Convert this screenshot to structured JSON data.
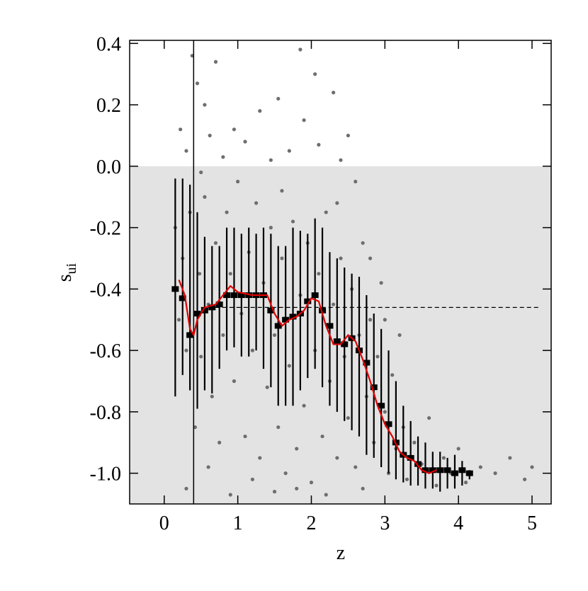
{
  "chart_data": {
    "type": "scatter",
    "xlabel": "z",
    "ylabel": "s",
    "ylabel_sub": "ui",
    "xlim": [
      -0.47,
      5.26
    ],
    "ylim": [
      -1.1,
      0.41
    ],
    "xticks": [
      0,
      1,
      2,
      3,
      4,
      5
    ],
    "yticks": [
      {
        "value": -1.0,
        "label": "-1.0"
      },
      -0.8,
      -0.6,
      -0.4,
      -0.2,
      {
        "value": 0.0,
        "label": "0.0"
      },
      0.2,
      0.4
    ],
    "shade_below": 0,
    "shade_color": "#e3e3e3",
    "vline": {
      "x": 0.4
    },
    "reference_line": {
      "y": -0.46,
      "x": [
        0.5,
        5.1
      ]
    },
    "scatter": {
      "color": "#6e6e6e",
      "x": [
        0.22,
        0.3,
        0.38,
        0.45,
        0.55,
        0.62,
        0.7,
        0.8,
        0.95,
        1.1,
        1.3,
        1.45,
        1.55,
        1.7,
        1.85,
        1.9,
        2.05,
        2.1,
        2.3,
        2.4,
        2.6,
        2.5,
        0.15,
        0.2,
        0.25,
        0.3,
        0.35,
        0.42,
        0.48,
        0.5,
        0.55,
        0.6,
        0.65,
        0.7,
        0.75,
        0.8,
        0.85,
        0.9,
        0.95,
        1.0,
        1.05,
        1.1,
        1.15,
        1.2,
        1.25,
        1.3,
        1.35,
        1.4,
        1.45,
        1.5,
        1.55,
        1.6,
        1.65,
        1.7,
        1.75,
        1.8,
        1.85,
        1.9,
        1.95,
        2.0,
        2.05,
        2.1,
        2.15,
        2.2,
        2.25,
        2.3,
        2.35,
        2.4,
        2.45,
        2.5,
        2.55,
        2.6,
        2.65,
        2.7,
        2.75,
        2.8,
        2.85,
        2.9,
        2.95,
        3.0,
        3.05,
        3.1,
        3.15,
        3.2,
        3.25,
        3.3,
        3.4,
        3.5,
        3.6,
        3.7,
        3.8,
        3.9,
        4.0,
        4.1,
        4.3,
        4.5,
        4.7,
        4.9,
        5.0,
        0.3,
        0.6,
        0.9,
        1.2,
        1.5,
        1.8,
        2.2,
        2.7,
        0.5,
        1.6,
        2.35,
        2.8,
        3.0
      ],
      "y": [
        0.12,
        0.05,
        0.36,
        0.27,
        0.2,
        0.1,
        0.34,
        0.03,
        0.12,
        0.08,
        0.18,
        0.02,
        0.22,
        0.05,
        0.38,
        0.15,
        0.3,
        0.07,
        0.24,
        0.02,
        -0.05,
        0.1,
        -0.2,
        -0.5,
        -0.3,
        -0.6,
        -0.15,
        -0.85,
        -0.35,
        -0.62,
        -0.1,
        -0.45,
        -0.75,
        -0.25,
        -0.9,
        -0.55,
        -0.15,
        -0.35,
        -0.7,
        -0.05,
        -0.48,
        -0.88,
        -0.28,
        -0.6,
        -0.12,
        -0.95,
        -0.38,
        -0.72,
        -0.2,
        -0.55,
        -0.85,
        -0.3,
        -1.0,
        -0.65,
        -0.18,
        -0.92,
        -0.42,
        -0.78,
        -0.25,
        -1.03,
        -0.6,
        -0.35,
        -0.88,
        -0.15,
        -0.7,
        -0.45,
        -0.95,
        -0.3,
        -0.62,
        -0.82,
        -0.4,
        -0.98,
        -0.55,
        -0.25,
        -0.75,
        -0.5,
        -0.9,
        -0.62,
        -0.38,
        -0.8,
        -1.0,
        -0.68,
        -0.92,
        -0.55,
        -0.85,
        -1.02,
        -0.9,
        -0.97,
        -0.82,
        -1.04,
        -0.95,
        -1.0,
        -0.92,
        -1.03,
        -0.98,
        -1.0,
        -0.95,
        -1.02,
        -0.98,
        -1.05,
        -0.98,
        -1.07,
        -1.02,
        -1.06,
        -1.05,
        -1.07,
        -1.05,
        -0.02,
        -0.08,
        -0.12,
        -0.3,
        -0.5
      ]
    },
    "binned": {
      "color": "#000000",
      "x": [
        0.15,
        0.25,
        0.35,
        0.45,
        0.55,
        0.65,
        0.75,
        0.85,
        0.95,
        1.05,
        1.15,
        1.25,
        1.35,
        1.45,
        1.55,
        1.65,
        1.75,
        1.85,
        1.95,
        2.05,
        2.15,
        2.25,
        2.35,
        2.45,
        2.55,
        2.65,
        2.75,
        2.85,
        2.95,
        3.05,
        3.15,
        3.25,
        3.35,
        3.45,
        3.55,
        3.65,
        3.75,
        3.85,
        3.95,
        4.05,
        4.15
      ],
      "median": [
        -0.4,
        -0.43,
        -0.55,
        -0.48,
        -0.47,
        -0.46,
        -0.45,
        -0.42,
        -0.42,
        -0.42,
        -0.42,
        -0.42,
        -0.42,
        -0.47,
        -0.52,
        -0.5,
        -0.49,
        -0.48,
        -0.44,
        -0.42,
        -0.47,
        -0.52,
        -0.57,
        -0.58,
        -0.56,
        -0.6,
        -0.64,
        -0.72,
        -0.78,
        -0.84,
        -0.9,
        -0.94,
        -0.95,
        -0.97,
        -0.99,
        -0.99,
        -0.99,
        -0.99,
        -1.0,
        -0.99,
        -1.0
      ],
      "low": [
        -0.75,
        -0.68,
        -0.73,
        -0.79,
        -0.73,
        -0.74,
        -0.66,
        -0.6,
        -0.59,
        -0.62,
        -0.62,
        -0.6,
        -0.66,
        -0.72,
        -0.78,
        -0.78,
        -0.78,
        -0.73,
        -0.69,
        -0.66,
        -0.72,
        -0.78,
        -0.8,
        -0.83,
        -0.86,
        -0.88,
        -0.94,
        -0.95,
        -0.98,
        -1.0,
        -1.02,
        -1.03,
        -1.04,
        -1.04,
        -1.05,
        -1.05,
        -1.06,
        -1.05,
        -1.05,
        -1.04,
        -1.02
      ],
      "high": [
        -0.04,
        -0.04,
        -0.06,
        -0.15,
        -0.23,
        -0.26,
        -0.26,
        -0.2,
        -0.2,
        -0.22,
        -0.2,
        -0.22,
        -0.2,
        -0.22,
        -0.26,
        -0.26,
        -0.2,
        -0.21,
        -0.22,
        -0.17,
        -0.2,
        -0.28,
        -0.3,
        -0.33,
        -0.35,
        -0.36,
        -0.42,
        -0.48,
        -0.53,
        -0.6,
        -0.7,
        -0.78,
        -0.83,
        -0.88,
        -0.9,
        -0.93,
        -0.93,
        -0.95,
        -0.94,
        -0.96,
        -0.99
      ]
    },
    "smooth": {
      "color": "#e00000",
      "x": [
        0.2,
        0.28,
        0.35,
        0.4,
        0.45,
        0.55,
        0.7,
        0.8,
        0.9,
        1.0,
        1.2,
        1.4,
        1.5,
        1.6,
        1.7,
        1.8,
        1.9,
        2.0,
        2.1,
        2.2,
        2.3,
        2.4,
        2.5,
        2.6,
        2.7,
        2.8,
        2.9,
        3.0,
        3.1,
        3.2,
        3.3,
        3.4,
        3.5,
        3.6,
        3.7
      ],
      "y": [
        -0.37,
        -0.42,
        -0.53,
        -0.55,
        -0.5,
        -0.46,
        -0.45,
        -0.42,
        -0.39,
        -0.41,
        -0.42,
        -0.42,
        -0.48,
        -0.52,
        -0.5,
        -0.49,
        -0.47,
        -0.43,
        -0.44,
        -0.52,
        -0.58,
        -0.58,
        -0.55,
        -0.57,
        -0.63,
        -0.7,
        -0.78,
        -0.84,
        -0.88,
        -0.93,
        -0.95,
        -0.96,
        -0.99,
        -1.0,
        -0.99
      ]
    }
  }
}
